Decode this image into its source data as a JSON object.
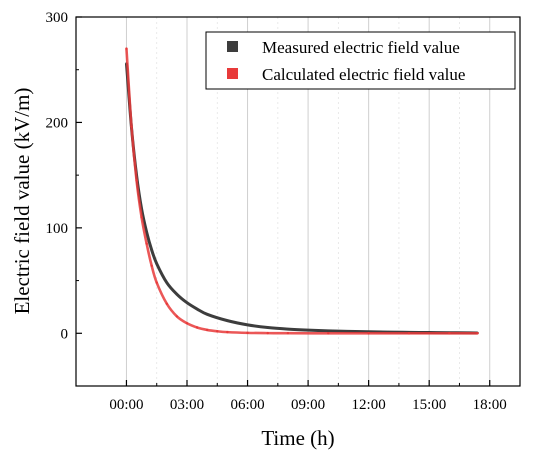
{
  "chart_data": {
    "type": "line",
    "xlabel": "Time (h)",
    "ylabel": "Electric field value (kV/m)",
    "x_unit": "h",
    "xlim": [
      -2.5,
      19.5
    ],
    "ylim": [
      -50,
      300
    ],
    "x_ticks": [
      {
        "value": 0,
        "label": "00:00"
      },
      {
        "value": 3,
        "label": "03:00"
      },
      {
        "value": 6,
        "label": "06:00"
      },
      {
        "value": 9,
        "label": "09:00"
      },
      {
        "value": 12,
        "label": "12:00"
      },
      {
        "value": 15,
        "label": "15:00"
      },
      {
        "value": 18,
        "label": "18:00"
      }
    ],
    "y_ticks": [
      {
        "value": 0,
        "label": "0"
      },
      {
        "value": 100,
        "label": "100"
      },
      {
        "value": 200,
        "label": "200"
      },
      {
        "value": 300,
        "label": "300"
      }
    ],
    "grid": true,
    "legend_position": "top-right",
    "series": [
      {
        "name": "Measured electric field value",
        "color": "#3d3d3d",
        "marker": "square",
        "x": [
          0,
          0.25,
          0.5,
          0.75,
          1,
          1.25,
          1.5,
          2,
          2.5,
          3,
          3.5,
          4,
          5,
          6,
          7,
          8,
          9,
          10,
          11,
          12,
          13,
          14,
          15,
          16,
          17,
          17.4
        ],
        "y": [
          256,
          195,
          150,
          118,
          96,
          79,
          66,
          48,
          37,
          29,
          23,
          18,
          12,
          8,
          5.5,
          4,
          3,
          2.3,
          1.8,
          1.4,
          1.1,
          0.9,
          0.7,
          0.5,
          0.4,
          0.3
        ]
      },
      {
        "name": "Calculated electric field value",
        "color": "#e83a3a",
        "marker": "square",
        "x": [
          0,
          0.25,
          0.5,
          0.75,
          1,
          1.25,
          1.5,
          2,
          2.5,
          3,
          3.5,
          4,
          4.5,
          5,
          6,
          7,
          8,
          10,
          12,
          14,
          16,
          17.4
        ],
        "y": [
          270,
          196,
          145,
          110,
          85,
          64,
          48,
          28,
          16,
          9.5,
          5.5,
          3.2,
          1.9,
          1.1,
          0.4,
          0.15,
          0.05,
          0,
          0,
          0,
          0,
          0
        ]
      }
    ]
  }
}
